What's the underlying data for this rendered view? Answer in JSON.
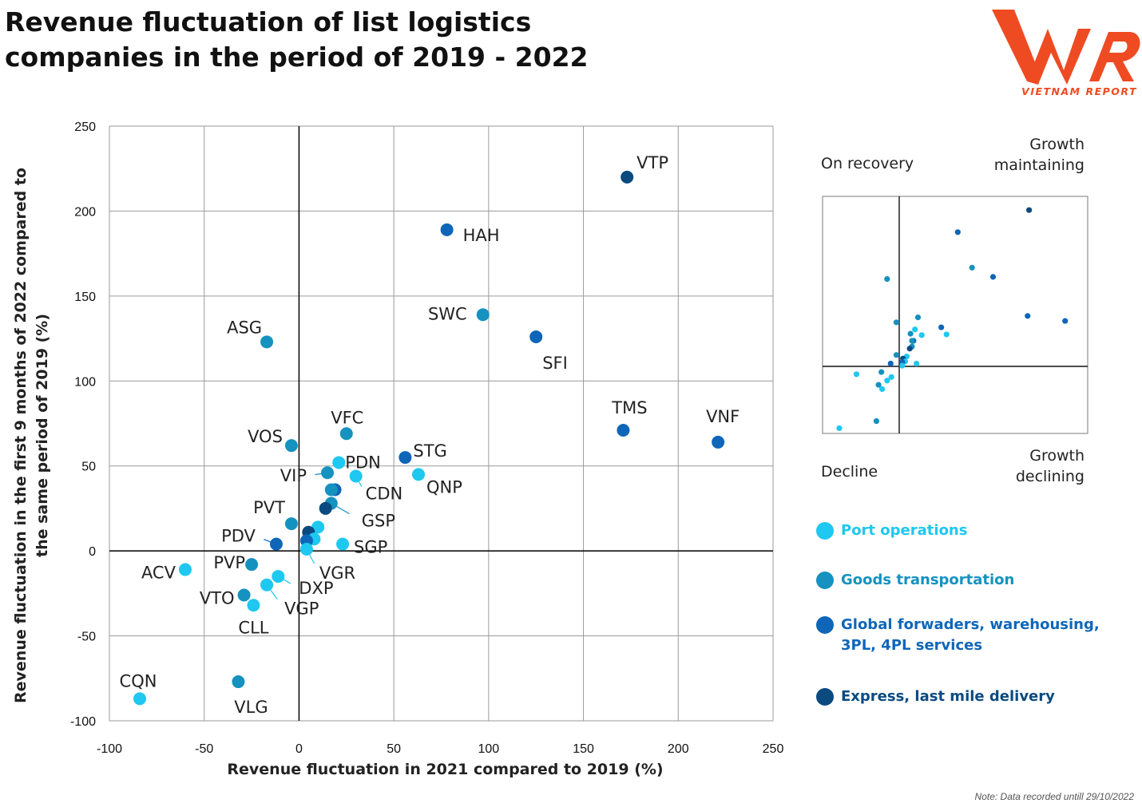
{
  "title_lines": [
    "Revenue fluctuation of list logistics",
    "companies in the period of 2019 - 2022"
  ],
  "logo": {
    "text": "VNR",
    "subtitle": "VIETNAM REPORT",
    "color": "#ef4b23"
  },
  "note": "Note: Data recorded untill 29/10/2022",
  "quadrants": {
    "top_left": "On recovery",
    "top_right": [
      "Growth",
      "maintaining"
    ],
    "bottom_left": "Decline",
    "bottom_right": [
      "Growth",
      "declining"
    ]
  },
  "legend": [
    {
      "key": "port",
      "lines": [
        "Port operations"
      ]
    },
    {
      "key": "goods",
      "lines": [
        "Goods transportation"
      ]
    },
    {
      "key": "global",
      "lines": [
        "Global forwaders, warehousing,",
        "3PL, 4PL services"
      ]
    },
    {
      "key": "express",
      "lines": [
        "Express, last mile delivery"
      ]
    }
  ],
  "colors": {
    "port": "#1ec8f0",
    "goods": "#1592bf",
    "global": "#0f66b8",
    "express": "#0a4a80"
  },
  "chart_data": {
    "type": "scatter",
    "xlabel": "Revenue fluctuation in 2021 compared to 2019 (%)",
    "ylabel_lines": [
      "Revenue fluctuation in the first 9 months of 2022 compared to",
      "the same period of 2019 (%)"
    ],
    "xlim": [
      -100,
      250
    ],
    "ylim": [
      -100,
      250
    ],
    "xticks": [
      -100,
      -50,
      0,
      50,
      100,
      150,
      200,
      250
    ],
    "yticks": [
      -100,
      -50,
      0,
      50,
      100,
      150,
      200,
      250
    ],
    "grid": true,
    "points": [
      {
        "label": "VTP",
        "x": 173,
        "y": 220,
        "category": "express"
      },
      {
        "label": "HAH",
        "x": 78,
        "y": 189,
        "category": "global"
      },
      {
        "label": "SWC",
        "x": 97,
        "y": 139,
        "category": "goods"
      },
      {
        "label": "SFI",
        "x": 125,
        "y": 126,
        "category": "global"
      },
      {
        "label": "ASG",
        "x": -17,
        "y": 123,
        "category": "goods"
      },
      {
        "label": "TMS",
        "x": 171,
        "y": 71,
        "category": "global"
      },
      {
        "label": "VNF",
        "x": 221,
        "y": 64,
        "category": "global"
      },
      {
        "label": "VFC",
        "x": 25,
        "y": 69,
        "category": "goods"
      },
      {
        "label": "VOS",
        "x": -4,
        "y": 62,
        "category": "goods"
      },
      {
        "label": "STG",
        "x": 56,
        "y": 55,
        "category": "global"
      },
      {
        "label": "PDN",
        "x": 21,
        "y": 52,
        "category": "port"
      },
      {
        "label": "VIP",
        "x": 15,
        "y": 46,
        "category": "goods"
      },
      {
        "label": "QNP",
        "x": 63,
        "y": 45,
        "category": "port"
      },
      {
        "label": "CDN",
        "x": 30,
        "y": 44,
        "category": "port"
      },
      {
        "label": "",
        "x": 19,
        "y": 36,
        "category": "global"
      },
      {
        "label": "",
        "x": 17,
        "y": 36,
        "category": "goods"
      },
      {
        "label": "GSP",
        "x": 17,
        "y": 28,
        "category": "goods"
      },
      {
        "label": "",
        "x": 14,
        "y": 25,
        "category": "express"
      },
      {
        "label": "PVT",
        "x": -4,
        "y": 16,
        "category": "goods"
      },
      {
        "label": "",
        "x": 10,
        "y": 14,
        "category": "port"
      },
      {
        "label": "",
        "x": 5,
        "y": 11,
        "category": "express"
      },
      {
        "label": "",
        "x": 8,
        "y": 7,
        "category": "port"
      },
      {
        "label": "",
        "x": 4,
        "y": 6,
        "category": "global"
      },
      {
        "label": "PDV",
        "x": -12,
        "y": 4,
        "category": "global"
      },
      {
        "label": "SGP",
        "x": 23,
        "y": 4,
        "category": "port"
      },
      {
        "label": "VGR",
        "x": 4,
        "y": 1,
        "category": "port"
      },
      {
        "label": "ACV",
        "x": -60,
        "y": -11,
        "category": "port"
      },
      {
        "label": "PVP",
        "x": -25,
        "y": -8,
        "category": "goods"
      },
      {
        "label": "DXP",
        "x": -11,
        "y": -15,
        "category": "port"
      },
      {
        "label": "VGP",
        "x": -17,
        "y": -20,
        "category": "port"
      },
      {
        "label": "VTO",
        "x": -29,
        "y": -26,
        "category": "goods"
      },
      {
        "label": "CLL",
        "x": -24,
        "y": -32,
        "category": "port"
      },
      {
        "label": "CQN",
        "x": -84,
        "y": -87,
        "category": "port"
      },
      {
        "label": "VLG",
        "x": -32,
        "y": -77,
        "category": "goods"
      }
    ]
  }
}
